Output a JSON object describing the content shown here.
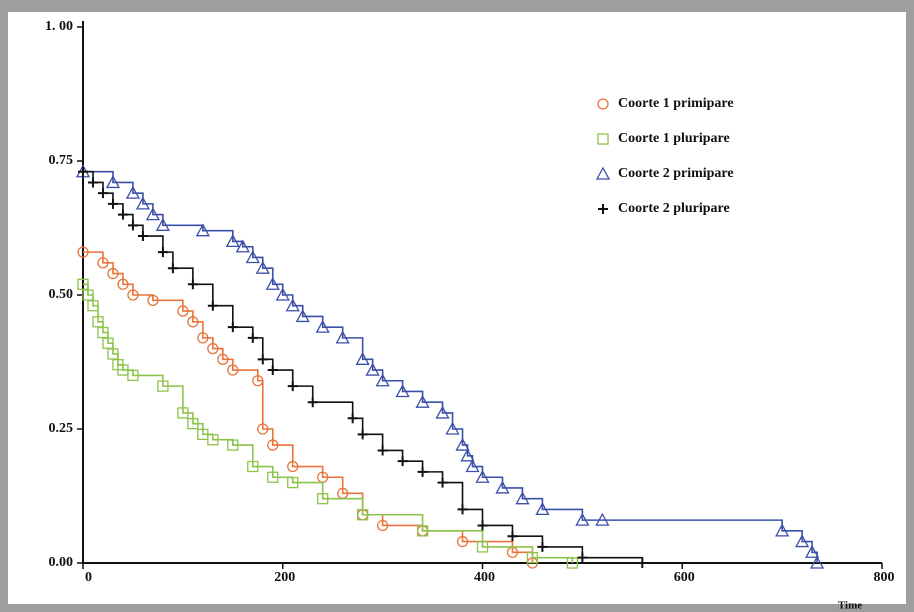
{
  "chart_data": {
    "type": "step",
    "x_label": "Time",
    "xlim": [
      0,
      800
    ],
    "xticks": [
      0,
      200,
      400,
      600,
      800
    ],
    "ylim": [
      0,
      1
    ],
    "yticks": [
      {
        "value": 0,
        "label": "0.00"
      },
      {
        "value": 0.25,
        "label": "0.25"
      },
      {
        "value": 0.5,
        "label": "0.50"
      },
      {
        "value": 0.75,
        "label": "0.75"
      },
      {
        "value": 1,
        "label": "1. 00"
      }
    ],
    "legend": "top-right",
    "series": [
      {
        "name": "Coorte 1 primipare",
        "color": "#e8743b",
        "marker": "circle",
        "x": [
          0,
          20,
          30,
          40,
          50,
          70,
          100,
          110,
          120,
          130,
          140,
          150,
          175,
          180,
          190,
          210,
          240,
          260,
          280,
          300,
          340,
          380,
          430,
          450
        ],
        "values": [
          0.58,
          0.56,
          0.54,
          0.52,
          0.5,
          0.49,
          0.47,
          0.45,
          0.42,
          0.4,
          0.38,
          0.36,
          0.34,
          0.25,
          0.22,
          0.18,
          0.16,
          0.13,
          0.09,
          0.07,
          0.06,
          0.04,
          0.02,
          0.0
        ]
      },
      {
        "name": "Coorte 1 pluripare",
        "color": "#8cc34a",
        "marker": "square",
        "x": [
          0,
          5,
          10,
          15,
          20,
          25,
          30,
          35,
          40,
          50,
          80,
          100,
          110,
          120,
          130,
          150,
          170,
          190,
          210,
          240,
          280,
          340,
          400,
          450,
          490
        ],
        "values": [
          0.52,
          0.5,
          0.48,
          0.45,
          0.43,
          0.41,
          0.39,
          0.37,
          0.36,
          0.35,
          0.33,
          0.28,
          0.26,
          0.24,
          0.23,
          0.22,
          0.18,
          0.16,
          0.15,
          0.12,
          0.09,
          0.06,
          0.03,
          0.01,
          0.0
        ]
      },
      {
        "name": "Coorte 2 primipare",
        "color": "#3a4fa8",
        "marker": "triangle",
        "x": [
          0,
          30,
          50,
          60,
          70,
          80,
          120,
          150,
          160,
          170,
          180,
          190,
          200,
          210,
          220,
          240,
          260,
          280,
          290,
          300,
          320,
          340,
          360,
          370,
          380,
          385,
          390,
          400,
          420,
          440,
          460,
          500,
          520,
          700,
          720,
          730,
          735
        ],
        "values": [
          0.73,
          0.71,
          0.69,
          0.67,
          0.65,
          0.63,
          0.62,
          0.6,
          0.59,
          0.57,
          0.55,
          0.52,
          0.5,
          0.48,
          0.46,
          0.44,
          0.42,
          0.38,
          0.36,
          0.34,
          0.32,
          0.3,
          0.28,
          0.25,
          0.22,
          0.2,
          0.18,
          0.16,
          0.14,
          0.12,
          0.1,
          0.08,
          0.08,
          0.06,
          0.04,
          0.02,
          0.0
        ]
      },
      {
        "name": "Coorte 2 pluripare",
        "color": "#111111",
        "marker": "plus",
        "x": [
          0,
          10,
          20,
          30,
          40,
          50,
          60,
          80,
          90,
          110,
          130,
          150,
          170,
          180,
          190,
          210,
          230,
          270,
          280,
          300,
          320,
          340,
          360,
          380,
          400,
          430,
          460,
          500,
          560
        ],
        "values": [
          0.73,
          0.71,
          0.69,
          0.67,
          0.65,
          0.63,
          0.61,
          0.58,
          0.55,
          0.52,
          0.48,
          0.44,
          0.42,
          0.38,
          0.36,
          0.33,
          0.3,
          0.27,
          0.24,
          0.21,
          0.19,
          0.17,
          0.15,
          0.1,
          0.07,
          0.05,
          0.03,
          0.01,
          0.0
        ]
      }
    ]
  }
}
